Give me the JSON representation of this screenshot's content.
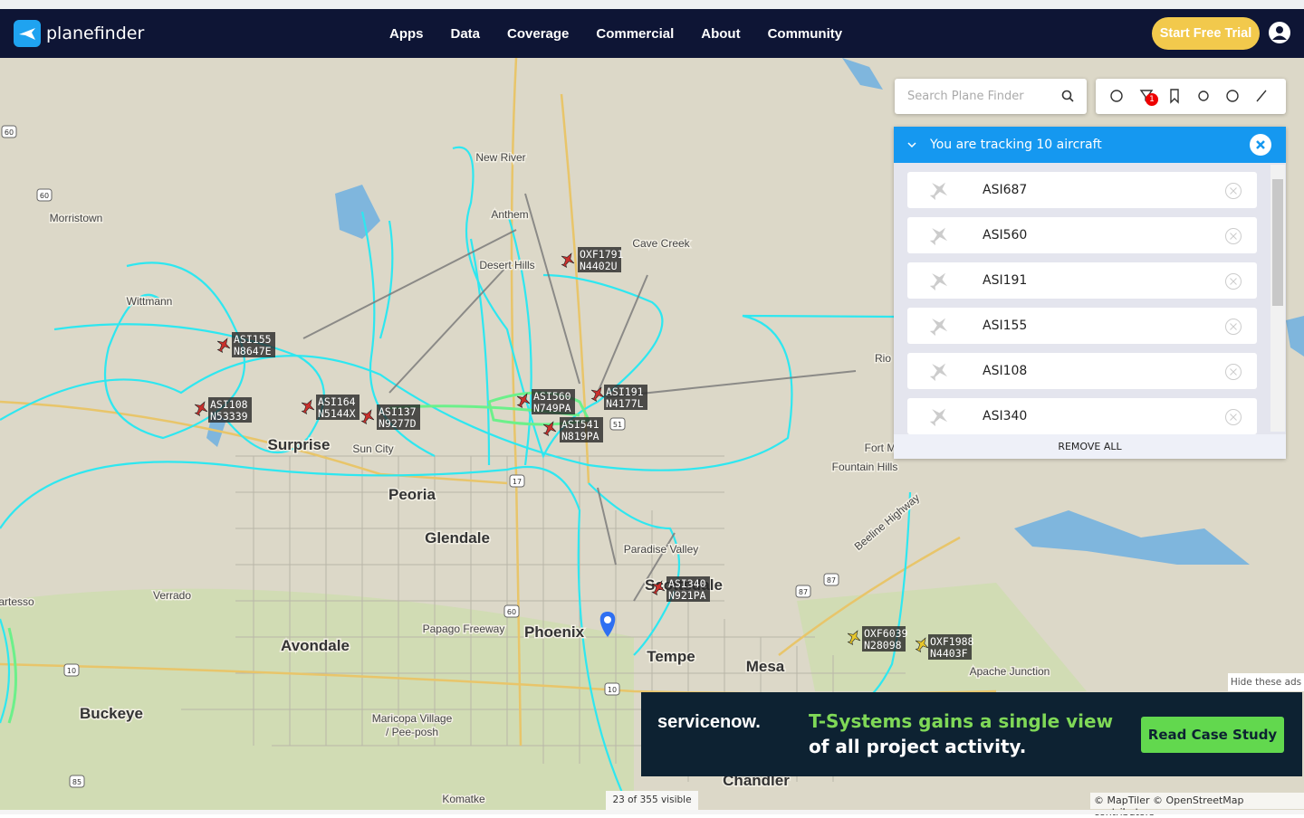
{
  "header": {
    "logo": "planefinder",
    "nav": [
      "Apps",
      "Data",
      "Coverage",
      "Commercial",
      "About",
      "Community"
    ],
    "cta": "Start Free Trial"
  },
  "search": {
    "placeholder": "Search Plane Finder"
  },
  "toolbar": {
    "filter_badge": "1"
  },
  "tracking": {
    "title": "You are tracking 10 aircraft",
    "aircraft": [
      "ASI687",
      "ASI560",
      "ASI191",
      "ASI155",
      "ASI108",
      "ASI340"
    ],
    "remove_all": "REMOVE ALL"
  },
  "map": {
    "places": [
      "Morristown",
      "New River",
      "Anthem",
      "Desert Hills",
      "Cave Creek",
      "Wittmann",
      "Surprise",
      "Sun City",
      "Peoria",
      "Glendale",
      "Paradise Valley",
      "Scottsdale",
      "Fountain Hills",
      "Verrado",
      "Avondale",
      "Phoenix",
      "Tempe",
      "Mesa",
      "Apache Junction",
      "Buckeye",
      "Maricopa Village",
      "/ Pee-posh",
      "Chandler",
      "Komatke",
      "Papago Freeway",
      "Beeline Highway",
      "artesso",
      "Fort M",
      "Rio"
    ],
    "highways": [
      "60",
      "60",
      "17",
      "51",
      "60",
      "10",
      "10",
      "87",
      "87",
      "85"
    ],
    "aircraft": [
      {
        "callsign": "ASI155",
        "registration": "N8647E"
      },
      {
        "callsign": "ASI108",
        "registration": "N53339"
      },
      {
        "callsign": "ASI164",
        "registration": "N5144X"
      },
      {
        "callsign": "ASI137",
        "registration": "N9277D"
      },
      {
        "callsign": "ASI560",
        "registration": "N749PA"
      },
      {
        "callsign": "ASI541",
        "registration": "N819PA"
      },
      {
        "callsign": "ASI191",
        "registration": "N4177L"
      },
      {
        "callsign": "OXF1791",
        "registration": "N4402U"
      },
      {
        "callsign": "ASI340",
        "registration": "N921PA"
      },
      {
        "callsign": "OXF6039",
        "registration": "N28098"
      },
      {
        "callsign": "OXF1988",
        "registration": "N4403F"
      }
    ],
    "visible": "23 of 355 visible",
    "attribution": [
      "© MapTiler",
      "© OpenStreetMap contributors"
    ]
  },
  "ad": {
    "brand": "servicenow.",
    "headline": "T-Systems gains a single view",
    "subline": "of all project activity.",
    "button": "Read Case Study",
    "hide": "Hide these ads"
  }
}
